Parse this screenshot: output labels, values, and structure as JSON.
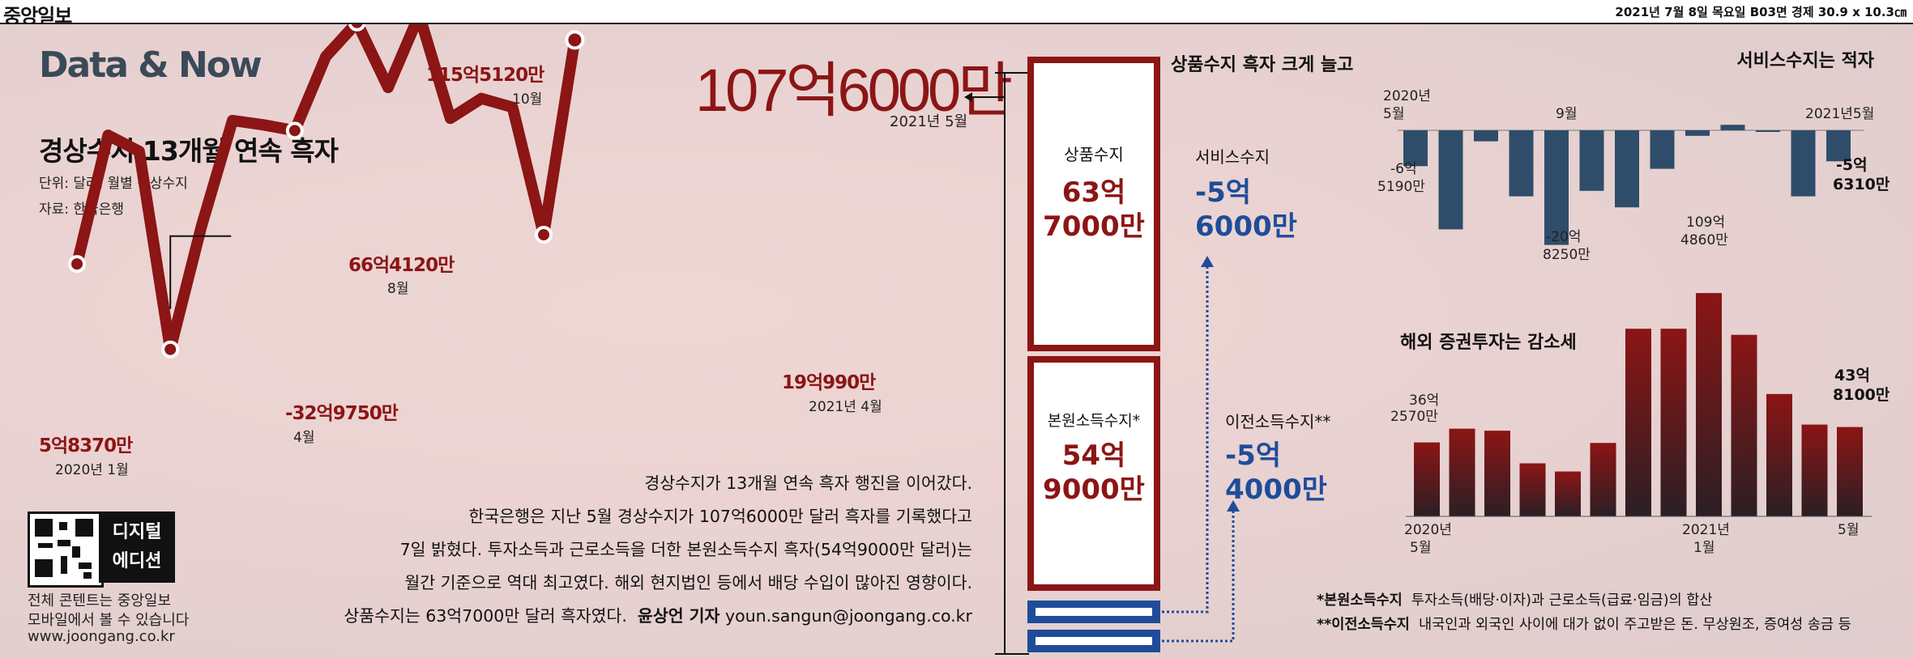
{
  "masthead": {
    "logo": "중앙일보",
    "dateline": "2021년 7월 8일 목요일 B03면 경제 30.9 x 10.3㎝"
  },
  "brand": "Data & Now",
  "title": "경상수지 13개월 연속 흑자",
  "unit_note": "단위: 달러, 월별 경상수지",
  "source_note": "자료: 한국은행",
  "headline_value": "107억6000만",
  "headline_date": "2021년 5월",
  "colors": {
    "line": "#8c1515",
    "accent_blue": "#1f4c9a",
    "box_border": "#8c1515",
    "headline": "#8c1515",
    "brand": "#3a4a58"
  },
  "chart_data": [
    {
      "type": "line",
      "title": "경상수지 13개월 연속 흑자",
      "x": [
        "2020-01",
        "2020-02",
        "2020-03",
        "2020-04",
        "2020-05",
        "2020-06",
        "2020-07",
        "2020-08",
        "2020-09",
        "2020-10",
        "2020-11",
        "2020-12",
        "2021-01",
        "2021-02",
        "2021-03",
        "2021-04",
        "2021-05"
      ],
      "y": [
        5.837,
        64.3,
        57.0,
        -32.975,
        22.9,
        71.0,
        69.0,
        66.412,
        100.1,
        115.512,
        86.0,
        119.0,
        72.0,
        81.0,
        77.0,
        19.099,
        107.6
      ],
      "unit": "억 달러",
      "annotations": [
        {
          "index": 0,
          "value": "5억8370만",
          "date": "2020년 1월"
        },
        {
          "index": 3,
          "value": "-32억9750만",
          "date": "4월"
        },
        {
          "index": 7,
          "value": "66억4120만",
          "date": "8월"
        },
        {
          "index": 9,
          "value": "115억5120만",
          "date": "10월"
        },
        {
          "index": 15,
          "value": "19억990만",
          "date": "2021년 4월"
        },
        {
          "index": 16,
          "value": "107억6000만",
          "date": "2021년 5월"
        }
      ]
    },
    {
      "type": "bar",
      "title": "서비스수지는 적자",
      "x": [
        "2020-05",
        "2020-06",
        "2020-07",
        "2020-08",
        "2020-09",
        "2020-10",
        "2020-11",
        "2020-12",
        "2021-01",
        "2021-02",
        "2021-03",
        "2021-04",
        "2021-05"
      ],
      "values": [
        -6.519,
        -18.0,
        -2.0,
        -12.0,
        -20.825,
        -11.0,
        -14.0,
        -7.0,
        -1.0,
        1.0,
        0.0,
        -12.0,
        -5.631
      ],
      "tick_labels": [
        "2020년 5월",
        "9월",
        "2021년5월"
      ],
      "data_labels": [
        {
          "index": 0,
          "text": "-6억 5190만"
        },
        {
          "index": 4,
          "text": "-20억 8250만"
        },
        {
          "index": 12,
          "text": "-5억 6310만"
        }
      ]
    },
    {
      "type": "bar",
      "title": "해외 증권투자는 감소세",
      "x": [
        "2020-05",
        "2020-06",
        "2020-07",
        "2020-08",
        "2020-09",
        "2020-10",
        "2020-11",
        "2020-12",
        "2021-01",
        "2021-02",
        "2021-03",
        "2021-04",
        "2021-05"
      ],
      "values": [
        36.257,
        43.0,
        42.0,
        26.0,
        22.0,
        36.0,
        92.0,
        92.0,
        109.486,
        89.0,
        60.0,
        45.0,
        43.81
      ],
      "tick_labels": [
        "2020년 5월",
        "2021년 1월",
        "5월"
      ],
      "data_labels": [
        {
          "index": 0,
          "text": "36억 2570만"
        },
        {
          "index": 8,
          "text": "109억 4860만"
        },
        {
          "index": 12,
          "text": "43억 8100만"
        }
      ]
    }
  ],
  "breakdown": {
    "heading": "상품수지 흑자 크게 늘고",
    "goods_label": "상품수지",
    "goods_value_1": "63억",
    "goods_value_2": "7000만",
    "primary_label": "본원소득수지*",
    "primary_value_1": "54억",
    "primary_value_2": "9000만",
    "services_label": "서비스수지",
    "services_value_1": "-5억",
    "services_value_2": "6000만",
    "transfer_label": "이전소득수지**",
    "transfer_value_1": "-5억",
    "transfer_value_2": "4000만"
  },
  "story": {
    "line1": "경상수지가 13개월 연속 흑자 행진을 이어갔다.",
    "line2": "한국은행은 지난 5월 경상수지가 107억6000만 달러 흑자를 기록했다고",
    "line3": "7일 밝혔다. 투자소득과 근로소득을 더한 본원소득수지 흑자(54억9000만 달러)는",
    "line4": "월간 기준으로 역대 최고였다. 해외 현지법인 등에서 배당 수입이 많아진 영향이다.",
    "line5": "상품수지는 63억7000만 달러 흑자였다.",
    "byline": "윤상언 기자",
    "email": "youn.sangun@joongang.co.kr"
  },
  "digital": {
    "line1": "디지털",
    "line2": "에디션",
    "desc1": "전체 콘텐트는 중앙일보",
    "desc2": "모바일에서 볼 수 있습니다",
    "url": "www.joongang.co.kr"
  },
  "footnotes": {
    "f1_term": "*본원소득수지",
    "f1_text": "투자소득(배당·이자)과 근로소득(급료·임금)의 합산",
    "f2_term": "**이전소득수지",
    "f2_text": "내국인과 외국인 사이에 대가 없이 주고받은 돈. 무상원조, 증여성 송금 등"
  }
}
